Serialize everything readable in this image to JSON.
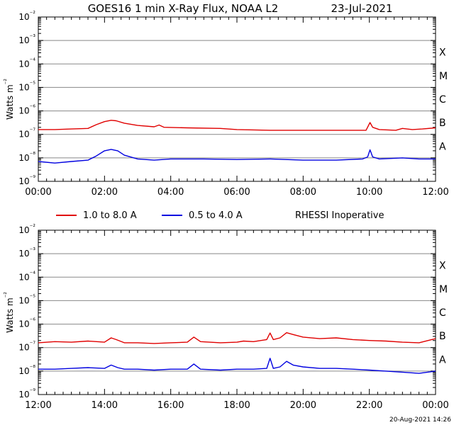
{
  "title": "GOES16 1 min X-Ray Flux, NOAA L2",
  "date": "23-Jul-2021",
  "footer_timestamp": "20-Aug-2021 14:26",
  "rhessi_note": "RHESSI Inoperative",
  "colors": {
    "long_channel": "#e00000",
    "short_channel": "#0000e0",
    "gridline": "#000000",
    "axes": "#000000"
  },
  "legend": [
    {
      "label": "1.0 to 8.0 A",
      "color": "#e00000"
    },
    {
      "label": "0.5 to 4.0 A",
      "color": "#0000e0"
    }
  ],
  "chart_data": [
    {
      "type": "line",
      "title": "GOES16 1 min X-Ray Flux, NOAA L2",
      "ylabel": "Watts m⁻²",
      "yscale": "log",
      "ylim": [
        1e-09,
        0.01
      ],
      "xlim_hours": [
        0,
        12
      ],
      "xticks": [
        "00:00",
        "02:00",
        "04:00",
        "06:00",
        "08:00",
        "10:00",
        "12:00"
      ],
      "yticks": [
        "10⁻⁹",
        "10⁻⁸",
        "10⁻⁷",
        "10⁻⁶",
        "10⁻⁵",
        "10⁻⁴",
        "10⁻³",
        "10⁻²"
      ],
      "flare_classes": [
        "A",
        "B",
        "C",
        "M",
        "X"
      ],
      "grid": "horizontal at decades",
      "series": [
        {
          "name": "1.0 to 8.0 A",
          "color": "#e00000",
          "x": [
            0,
            0.5,
            1,
            1.5,
            1.75,
            2,
            2.2,
            2.35,
            2.6,
            3,
            3.5,
            3.65,
            3.8,
            4.5,
            5.5,
            6,
            7,
            8,
            9,
            9.9,
            10.02,
            10.1,
            10.3,
            10.8,
            11,
            11.3,
            11.6,
            12
          ],
          "y": [
            1.6e-07,
            1.6e-07,
            1.7e-07,
            1.8e-07,
            2.6e-07,
            3.5e-07,
            4e-07,
            3.8e-07,
            3e-07,
            2.4e-07,
            2.1e-07,
            2.5e-07,
            2e-07,
            1.9e-07,
            1.8e-07,
            1.6e-07,
            1.5e-07,
            1.5e-07,
            1.5e-07,
            1.5e-07,
            3.2e-07,
            2e-07,
            1.6e-07,
            1.5e-07,
            1.8e-07,
            1.6e-07,
            1.7e-07,
            1.9e-07
          ]
        },
        {
          "name": "0.5 to 4.0 A",
          "color": "#0000e0",
          "x": [
            0,
            0.5,
            1,
            1.5,
            1.75,
            2,
            2.2,
            2.4,
            2.6,
            3,
            3.5,
            4,
            5,
            6,
            7,
            8,
            9,
            9.8,
            9.95,
            10.02,
            10.1,
            10.3,
            11,
            11.5,
            12
          ],
          "y": [
            7e-09,
            6e-09,
            7e-09,
            8e-09,
            1.2e-08,
            2e-08,
            2.3e-08,
            2e-08,
            1.3e-08,
            9e-09,
            8e-09,
            9e-09,
            9e-09,
            8.5e-09,
            9e-09,
            8e-09,
            8e-09,
            9e-09,
            1.1e-08,
            2.2e-08,
            1.1e-08,
            9e-09,
            1e-08,
            9e-09,
            9e-09
          ]
        }
      ]
    },
    {
      "type": "line",
      "ylabel": "Watts m⁻²",
      "yscale": "log",
      "ylim": [
        1e-09,
        0.01
      ],
      "xlim_hours": [
        12,
        24
      ],
      "xticks": [
        "12:00",
        "14:00",
        "16:00",
        "18:00",
        "20:00",
        "22:00",
        "00:00"
      ],
      "yticks": [
        "10⁻⁹",
        "10⁻⁸",
        "10⁻⁷",
        "10⁻⁶",
        "10⁻⁵",
        "10⁻⁴",
        "10⁻³",
        "10⁻²"
      ],
      "flare_classes": [
        "A",
        "B",
        "C",
        "M",
        "X"
      ],
      "grid": "horizontal at decades",
      "series": [
        {
          "name": "1.0 to 8.0 A",
          "color": "#e00000",
          "x": [
            12,
            12.5,
            13,
            13.5,
            14,
            14.2,
            14.35,
            14.6,
            15,
            15.5,
            16,
            16.5,
            16.7,
            16.9,
            17.5,
            18,
            18.2,
            18.5,
            18.9,
            19.0,
            19.1,
            19.3,
            19.5,
            19.7,
            20,
            20.5,
            21,
            21.5,
            22,
            22.5,
            23,
            23.5,
            24
          ],
          "y": [
            1.6e-07,
            1.8e-07,
            1.7e-07,
            1.9e-07,
            1.7e-07,
            2.6e-07,
            2.2e-07,
            1.6e-07,
            1.6e-07,
            1.5e-07,
            1.6e-07,
            1.7e-07,
            2.8e-07,
            1.8e-07,
            1.6e-07,
            1.7e-07,
            1.9e-07,
            1.8e-07,
            2.2e-07,
            4.2e-07,
            2.2e-07,
            2.6e-07,
            4.3e-07,
            3.6e-07,
            2.8e-07,
            2.4e-07,
            2.6e-07,
            2.2e-07,
            2e-07,
            1.9e-07,
            1.7e-07,
            1.6e-07,
            2.4e-07
          ]
        },
        {
          "name": "0.5 to 4.0 A",
          "color": "#0000e0",
          "x": [
            12,
            12.5,
            13,
            13.5,
            14,
            14.2,
            14.4,
            14.6,
            15,
            15.5,
            16,
            16.5,
            16.7,
            16.9,
            17.5,
            18,
            18.5,
            18.9,
            19.0,
            19.1,
            19.3,
            19.5,
            19.7,
            20,
            20.5,
            21,
            21.5,
            22,
            22.5,
            23,
            23.5,
            24
          ],
          "y": [
            1.2e-08,
            1.2e-08,
            1.3e-08,
            1.4e-08,
            1.3e-08,
            1.8e-08,
            1.4e-08,
            1.2e-08,
            1.2e-08,
            1.1e-08,
            1.2e-08,
            1.2e-08,
            2e-08,
            1.2e-08,
            1.1e-08,
            1.2e-08,
            1.2e-08,
            1.3e-08,
            3.5e-08,
            1.3e-08,
            1.5e-08,
            2.6e-08,
            1.8e-08,
            1.5e-08,
            1.3e-08,
            1.3e-08,
            1.2e-08,
            1.1e-08,
            1e-08,
            9e-09,
            8e-09,
            1e-08
          ]
        }
      ]
    }
  ]
}
